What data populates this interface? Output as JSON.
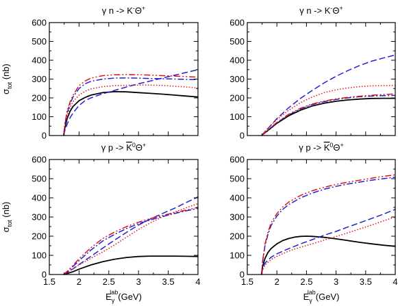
{
  "x_label": {
    "main": "E",
    "sub": "γ",
    "sup": "lab",
    "unit": "(GeV)"
  },
  "y_label": {
    "main": "σ",
    "sub": "tot",
    "unit": "(nb)"
  },
  "chart_data": [
    {
      "type": "line",
      "title": {
        "pre": "γ n -> K",
        "sup1": "-",
        "mid": "Θ",
        "sup2": "+"
      },
      "xlim": [
        1.5,
        4
      ],
      "ylim": [
        0,
        600
      ],
      "xticks": [
        "1.5",
        "2",
        "2.5",
        "3",
        "3.5",
        "4"
      ],
      "yticks": [
        "0",
        "100",
        "200",
        "300",
        "400",
        "500",
        "600"
      ],
      "series": [
        {
          "style": "solid",
          "color": "#000000",
          "x": [
            1.74,
            1.76,
            1.8,
            1.85,
            1.9,
            2.0,
            2.1,
            2.2,
            2.4,
            2.6,
            2.8,
            3.0,
            3.2,
            3.4,
            3.6,
            3.8,
            4.0
          ],
          "y": [
            0,
            40,
            90,
            130,
            155,
            185,
            202,
            215,
            228,
            233,
            232,
            228,
            224,
            220,
            215,
            210,
            205
          ]
        },
        {
          "style": "dashed",
          "color": "#1f1fd6",
          "x": [
            1.74,
            1.76,
            1.8,
            1.85,
            1.9,
            2.0,
            2.1,
            2.2,
            2.4,
            2.6,
            2.8,
            3.0,
            3.2,
            3.4,
            3.6,
            3.8,
            4.0
          ],
          "y": [
            0,
            25,
            60,
            95,
            120,
            160,
            185,
            200,
            222,
            240,
            258,
            275,
            290,
            305,
            320,
            335,
            350
          ]
        },
        {
          "style": "dotted",
          "color": "#e01010",
          "x": [
            1.74,
            1.76,
            1.8,
            1.85,
            1.9,
            2.0,
            2.1,
            2.2,
            2.4,
            2.6,
            2.8,
            3.0,
            3.2,
            3.4,
            3.6,
            3.8,
            4.0
          ],
          "y": [
            0,
            50,
            110,
            150,
            180,
            215,
            235,
            248,
            260,
            265,
            267,
            268,
            268,
            266,
            262,
            258,
            252
          ]
        },
        {
          "style": "dashdot",
          "color": "#1f1fd6",
          "x": [
            1.74,
            1.76,
            1.8,
            1.85,
            1.9,
            2.0,
            2.1,
            2.2,
            2.4,
            2.6,
            2.8,
            3.0,
            3.2,
            3.4,
            3.6,
            3.8,
            4.0
          ],
          "y": [
            0,
            55,
            120,
            170,
            205,
            250,
            275,
            288,
            300,
            305,
            306,
            305,
            303,
            302,
            300,
            298,
            297
          ]
        },
        {
          "style": "dashdotdot",
          "color": "#e01010",
          "x": [
            1.74,
            1.76,
            1.8,
            1.85,
            1.9,
            2.0,
            2.1,
            2.2,
            2.4,
            2.6,
            2.8,
            3.0,
            3.2,
            3.4,
            3.6,
            3.8,
            4.0
          ],
          "y": [
            0,
            60,
            130,
            180,
            215,
            265,
            290,
            305,
            318,
            323,
            324,
            323,
            321,
            318,
            316,
            313,
            310
          ]
        }
      ]
    },
    {
      "type": "line",
      "title": {
        "pre": "γ n -> K",
        "sup1": "-",
        "mid": "Θ",
        "sup2": "+"
      },
      "xlim": [
        1.5,
        4
      ],
      "ylim": [
        0,
        600
      ],
      "xticks": [
        "1.5",
        "2",
        "2.5",
        "3",
        "3.5",
        "4"
      ],
      "yticks": [
        "0",
        "100",
        "200",
        "300",
        "400",
        "500",
        "600"
      ],
      "series": [
        {
          "style": "solid",
          "color": "#000000",
          "x": [
            1.74,
            1.8,
            1.9,
            2.0,
            2.2,
            2.4,
            2.6,
            2.8,
            3.0,
            3.2,
            3.4,
            3.6,
            3.8,
            4.0
          ],
          "y": [
            0,
            15,
            40,
            65,
            105,
            135,
            157,
            172,
            182,
            189,
            194,
            197,
            198,
            198
          ]
        },
        {
          "style": "dashed",
          "color": "#1f1fd6",
          "x": [
            1.74,
            1.8,
            1.9,
            2.0,
            2.2,
            2.4,
            2.6,
            2.8,
            3.0,
            3.2,
            3.4,
            3.6,
            3.8,
            4.0
          ],
          "y": [
            0,
            20,
            55,
            90,
            148,
            198,
            240,
            280,
            315,
            345,
            372,
            395,
            412,
            428
          ]
        },
        {
          "style": "dotted",
          "color": "#e01010",
          "x": [
            1.74,
            1.8,
            1.9,
            2.0,
            2.2,
            2.4,
            2.6,
            2.8,
            3.0,
            3.2,
            3.4,
            3.6,
            3.8,
            4.0
          ],
          "y": [
            0,
            22,
            55,
            85,
            135,
            175,
            205,
            228,
            243,
            253,
            260,
            264,
            265,
            266
          ]
        },
        {
          "style": "dashdot",
          "color": "#1f1fd6",
          "x": [
            1.74,
            1.8,
            1.9,
            2.0,
            2.2,
            2.4,
            2.6,
            2.8,
            3.0,
            3.2,
            3.4,
            3.6,
            3.8,
            4.0
          ],
          "y": [
            0,
            15,
            42,
            68,
            110,
            142,
            165,
            180,
            192,
            200,
            206,
            210,
            212,
            213
          ]
        },
        {
          "style": "dashdotdot",
          "color": "#e01010",
          "x": [
            1.74,
            1.8,
            1.9,
            2.0,
            2.2,
            2.4,
            2.6,
            2.8,
            3.0,
            3.2,
            3.4,
            3.6,
            3.8,
            4.0
          ],
          "y": [
            0,
            16,
            44,
            70,
            113,
            145,
            168,
            183,
            195,
            203,
            209,
            214,
            218,
            221
          ]
        }
      ]
    },
    {
      "type": "line",
      "title": {
        "pre": "γ p -> ",
        "bar": "K",
        "sup1": "0",
        "mid": "Θ",
        "sup2": "+"
      },
      "xlim": [
        1.5,
        4
      ],
      "ylim": [
        0,
        600
      ],
      "xticks": [
        "1.5",
        "2",
        "2.5",
        "3",
        "3.5",
        "4"
      ],
      "yticks": [
        "0",
        "100",
        "200",
        "300",
        "400",
        "500",
        "600"
      ],
      "series": [
        {
          "style": "solid",
          "color": "#000000",
          "x": [
            1.74,
            1.8,
            1.9,
            2.0,
            2.2,
            2.4,
            2.6,
            2.8,
            3.0,
            3.2,
            3.4,
            3.6,
            3.8,
            4.0
          ],
          "y": [
            0,
            5,
            15,
            28,
            50,
            67,
            80,
            89,
            94,
            96,
            96,
            96,
            95,
            94
          ]
        },
        {
          "style": "dashed",
          "color": "#1f1fd6",
          "x": [
            1.74,
            1.8,
            1.9,
            2.0,
            2.2,
            2.4,
            2.6,
            2.8,
            3.0,
            3.2,
            3.4,
            3.6,
            3.8,
            4.0
          ],
          "y": [
            0,
            10,
            30,
            52,
            95,
            138,
            180,
            220,
            258,
            290,
            318,
            345,
            375,
            405
          ]
        },
        {
          "style": "dotted",
          "color": "#e01010",
          "x": [
            1.74,
            1.8,
            1.9,
            2.0,
            2.2,
            2.4,
            2.6,
            2.8,
            3.0,
            3.2,
            3.4,
            3.6,
            3.8,
            4.0
          ],
          "y": [
            0,
            10,
            30,
            50,
            85,
            118,
            155,
            195,
            235,
            270,
            300,
            325,
            348,
            370
          ]
        },
        {
          "style": "dashdot",
          "color": "#1f1fd6",
          "x": [
            1.74,
            1.8,
            1.9,
            2.0,
            2.2,
            2.4,
            2.6,
            2.8,
            3.0,
            3.2,
            3.4,
            3.6,
            3.8,
            4.0
          ],
          "y": [
            0,
            14,
            42,
            72,
            128,
            175,
            210,
            240,
            265,
            285,
            302,
            318,
            332,
            345
          ]
        },
        {
          "style": "dashdotdot",
          "color": "#e01010",
          "x": [
            1.74,
            1.8,
            1.9,
            2.0,
            2.2,
            2.4,
            2.6,
            2.8,
            3.0,
            3.2,
            3.4,
            3.6,
            3.8,
            4.0
          ],
          "y": [
            0,
            16,
            48,
            82,
            140,
            188,
            222,
            250,
            273,
            292,
            308,
            322,
            336,
            350
          ]
        }
      ]
    },
    {
      "type": "line",
      "title": {
        "pre": "γ p -> ",
        "bar": "K",
        "sup1": "0",
        "mid": "Θ",
        "sup2": "+"
      },
      "xlim": [
        1.5,
        4
      ],
      "ylim": [
        0,
        600
      ],
      "xticks": [
        "1.5",
        "2",
        "2.5",
        "3",
        "3.5",
        "4"
      ],
      "yticks": [
        "0",
        "100",
        "200",
        "300",
        "400",
        "500",
        "600"
      ],
      "series": [
        {
          "style": "solid",
          "color": "#000000",
          "x": [
            1.74,
            1.76,
            1.8,
            1.85,
            1.9,
            2.0,
            2.1,
            2.2,
            2.3,
            2.4,
            2.5,
            2.6,
            2.8,
            3.0,
            3.2,
            3.4,
            3.6,
            3.8,
            4.0
          ],
          "y": [
            0,
            45,
            85,
            115,
            135,
            160,
            177,
            188,
            195,
            199,
            200,
            199,
            194,
            186,
            177,
            168,
            160,
            153,
            147
          ]
        },
        {
          "style": "dashed",
          "color": "#1f1fd6",
          "x": [
            1.74,
            1.76,
            1.8,
            1.9,
            2.0,
            2.2,
            2.4,
            2.6,
            2.8,
            3.0,
            3.2,
            3.4,
            3.6,
            3.8,
            4.0
          ],
          "y": [
            0,
            30,
            60,
            90,
            108,
            135,
            160,
            182,
            205,
            225,
            248,
            270,
            292,
            315,
            340
          ]
        },
        {
          "style": "dotted",
          "color": "#e01010",
          "x": [
            1.74,
            1.76,
            1.8,
            1.9,
            2.0,
            2.2,
            2.4,
            2.6,
            2.8,
            3.0,
            3.2,
            3.4,
            3.6,
            3.8,
            4.0
          ],
          "y": [
            0,
            25,
            50,
            78,
            95,
            122,
            143,
            160,
            180,
            198,
            218,
            238,
            258,
            280,
            300
          ]
        },
        {
          "style": "dashdot",
          "color": "#1f1fd6",
          "x": [
            1.74,
            1.76,
            1.8,
            1.85,
            1.9,
            2.0,
            2.1,
            2.2,
            2.4,
            2.6,
            2.8,
            3.0,
            3.2,
            3.4,
            3.6,
            3.8,
            4.0
          ],
          "y": [
            0,
            70,
            150,
            210,
            255,
            305,
            340,
            365,
            400,
            425,
            445,
            460,
            472,
            482,
            492,
            500,
            508
          ]
        },
        {
          "style": "dashdotdot",
          "color": "#e01010",
          "x": [
            1.74,
            1.76,
            1.8,
            1.85,
            1.9,
            2.0,
            2.1,
            2.2,
            2.4,
            2.6,
            2.8,
            3.0,
            3.2,
            3.4,
            3.6,
            3.8,
            4.0
          ],
          "y": [
            0,
            75,
            160,
            220,
            268,
            318,
            352,
            378,
            413,
            437,
            455,
            470,
            482,
            492,
            502,
            512,
            520
          ]
        }
      ]
    }
  ]
}
